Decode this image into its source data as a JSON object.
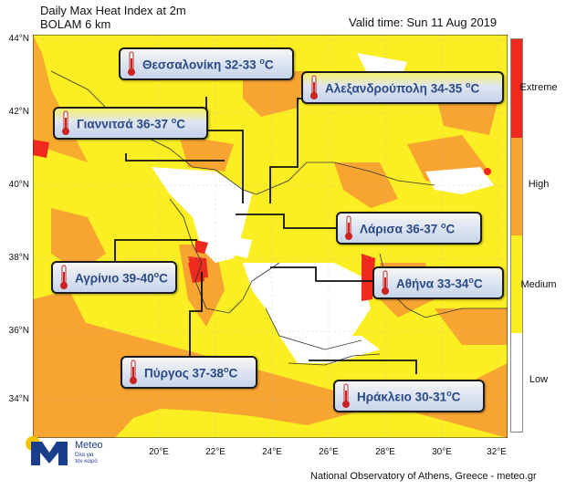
{
  "header": {
    "title_line1": "Daily Max Heat Index at 2m",
    "title_line2": "BOLAM 6 km",
    "valid_time": "Valid time: Sun 11 Aug 2019"
  },
  "lat_ticks": [
    "44°N",
    "42°N",
    "40°N",
    "38°N",
    "36°N",
    "34°N"
  ],
  "lon_ticks": [
    "20°E",
    "22°E",
    "24°E",
    "26°E",
    "28°E",
    "30°E",
    "32°E"
  ],
  "legend": {
    "categories": [
      "Extreme",
      "High",
      "Medium",
      "Low"
    ],
    "colors": {
      "extreme": "#ee2a1e",
      "high": "#f7a431",
      "medium": "#fbee22",
      "low": "#ffffff"
    }
  },
  "cities": [
    {
      "name": "Θεσσαλονίκη",
      "range": "32-33",
      "unit": "C"
    },
    {
      "name": "Αλεξανδρούπολη",
      "range": "34-35",
      "unit": "C"
    },
    {
      "name": "Γιαννιτσά",
      "range": "36-37",
      "unit": "C"
    },
    {
      "name": "Λάρισα",
      "range": "36-37",
      "unit": "C"
    },
    {
      "name": "Αγρίνιο",
      "range": "39-40",
      "unit": "C"
    },
    {
      "name": "Αθήνα",
      "range": "33-34",
      "unit": "C"
    },
    {
      "name": "Πύργος",
      "range": "37-38",
      "unit": "C"
    },
    {
      "name": "Ηράκλειο",
      "range": "30-31",
      "unit": "C"
    }
  ],
  "logo": {
    "name": "Meteo",
    "tagline_1": "Όλα για",
    "tagline_2": "τον καιρό"
  },
  "footer": "National Observatory of Athens, Greece - meteo.gr"
}
